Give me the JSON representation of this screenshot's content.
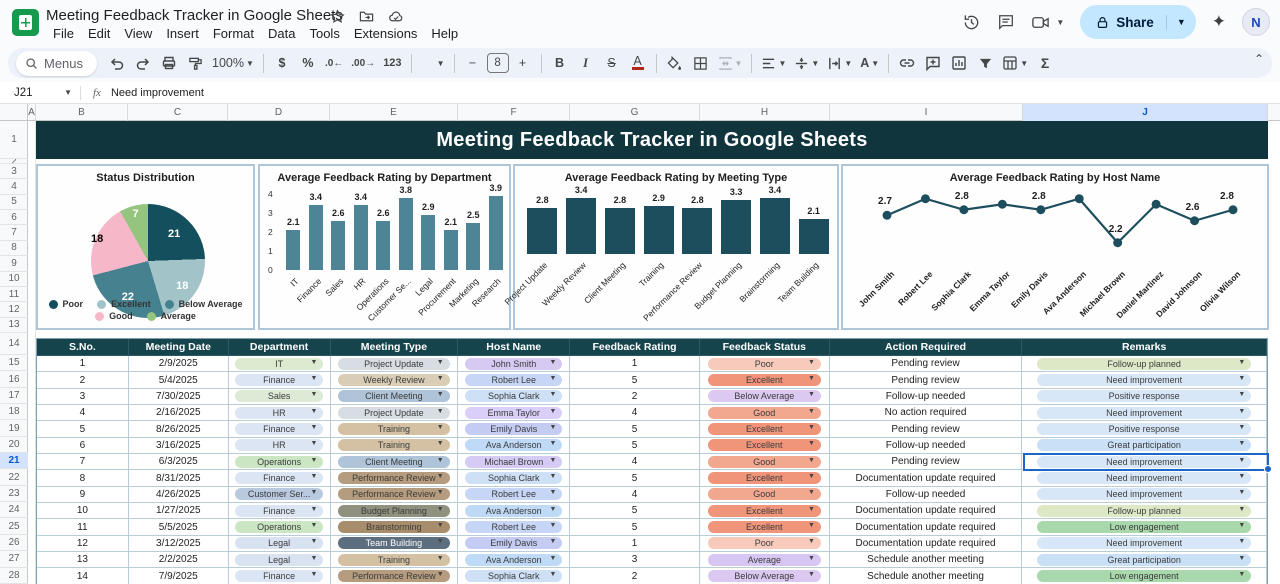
{
  "titlebar": {
    "title": "Meeting Feedback Tracker in Google Sheets",
    "menus": [
      "File",
      "Edit",
      "View",
      "Insert",
      "Format",
      "Data",
      "Tools",
      "Extensions",
      "Help"
    ],
    "share_label": "Share",
    "avatar_initial": "N"
  },
  "toolbar": {
    "menus_label": "Menus",
    "zoom_value": "100%",
    "currency_label": "$",
    "percent_label": "%",
    "decimal_decrease_label": ".0←",
    "decimal_increase_label": ".00→",
    "number_format_label": "123",
    "font_size_value": "8",
    "bold_label": "B",
    "italic_label": "I",
    "strikethrough_label": "S",
    "text_color_label": "A",
    "rotate_label": "A",
    "functions_label": "Σ"
  },
  "formula_bar": {
    "cell_ref": "J21",
    "fx_label": "fx",
    "value": "Need improvement"
  },
  "sheet": {
    "column_letters": [
      "A",
      "B",
      "C",
      "D",
      "E",
      "F",
      "G",
      "H",
      "I",
      "J"
    ],
    "selected_column": "J",
    "selected_row": 21,
    "visible_rows": 28,
    "banner_title": "Meeting Feedback Tracker in Google Sheets"
  },
  "chart_data": [
    {
      "type": "pie",
      "title": "Status Distribution",
      "labels": [
        "Poor",
        "Excellent",
        "Below Average",
        "Good",
        "Average"
      ],
      "values": [
        21,
        18,
        22,
        18,
        7
      ],
      "colors": [
        "#134f5c",
        "#a2c4c9",
        "#45818e",
        "#f6b8c8",
        "#94c47e"
      ],
      "label_text_colors": [
        "#ffffff",
        "#ffffff",
        "#ffffff",
        "#000000",
        "#ffffff"
      ],
      "legend_rows": [
        [
          "Poor",
          "Excellent",
          "Below Average"
        ],
        [
          "Good",
          "Average"
        ]
      ],
      "legend_position": "bottom"
    },
    {
      "type": "bar",
      "title": "Average Feedback Rating by Department",
      "categories": [
        "IT",
        "Finance",
        "Sales",
        "HR",
        "Operations",
        "Customer Se...",
        "Legal",
        "Procurement",
        "Marketing",
        "Research"
      ],
      "values": [
        2.1,
        3.4,
        2.6,
        3.4,
        2.6,
        3.8,
        2.9,
        2.1,
        2.5,
        3.9
      ],
      "ylim": [
        0,
        4
      ],
      "yticks": [
        0,
        1,
        2,
        3,
        4
      ],
      "bar_color": "#4d8496",
      "grid": false
    },
    {
      "type": "bar",
      "title": "Average Feedback Rating by Meeting Type",
      "categories": [
        "Project Update",
        "Weekly Review",
        "Client Meeting",
        "Training",
        "Performance Review",
        "Budget Planning",
        "Brainstorming",
        "Team Building"
      ],
      "values": [
        2.8,
        3.4,
        2.8,
        2.9,
        2.8,
        3.3,
        3.4,
        2.1
      ],
      "ylim": [
        0,
        4
      ],
      "bar_color": "#1c4e5e",
      "grid": false
    },
    {
      "type": "line",
      "title": "Average Feedback Rating by Host Name",
      "categories": [
        "John Smith",
        "Robert Lee",
        "Sophia Clark",
        "Emma Taylor",
        "Emily Davis",
        "Ava Anderson",
        "Michael Brown",
        "Daniel Martinez",
        "David Johnson",
        "Olivia Wilson"
      ],
      "values": [
        2.7,
        3.0,
        2.8,
        2.9,
        2.8,
        3.0,
        2.2,
        2.9,
        2.6,
        2.8
      ],
      "labeled_points": [
        0,
        2,
        4,
        6,
        8,
        9
      ],
      "ylim": [
        2.0,
        3.2
      ],
      "line_color": "#1c4e5e",
      "grid": false
    }
  ],
  "table": {
    "headers": [
      "S.No.",
      "Meeting Date",
      "Department",
      "Meeting Type",
      "Host Name",
      "Feedback Rating",
      "Feedback Status",
      "Action Required",
      "Remarks"
    ],
    "rows": [
      {
        "sno": "1",
        "date": "2/9/2025",
        "department": "IT",
        "meeting_type": "Project Update",
        "host": "John Smith",
        "rating": "1",
        "status": "Poor",
        "action": "Pending review",
        "remarks": "Follow-up planned"
      },
      {
        "sno": "2",
        "date": "5/4/2025",
        "department": "Finance",
        "meeting_type": "Weekly Review",
        "host": "Robert Lee",
        "rating": "5",
        "status": "Excellent",
        "action": "Pending review",
        "remarks": "Need improvement"
      },
      {
        "sno": "3",
        "date": "7/30/2025",
        "department": "Sales",
        "meeting_type": "Client Meeting",
        "host": "Sophia Clark",
        "rating": "2",
        "status": "Below Average",
        "action": "Follow-up needed",
        "remarks": "Positive response"
      },
      {
        "sno": "4",
        "date": "2/16/2025",
        "department": "HR",
        "meeting_type": "Project Update",
        "host": "Emma Taylor",
        "rating": "4",
        "status": "Good",
        "action": "No action required",
        "remarks": "Need improvement"
      },
      {
        "sno": "5",
        "date": "8/26/2025",
        "department": "Finance",
        "meeting_type": "Training",
        "host": "Emily Davis",
        "rating": "5",
        "status": "Excellent",
        "action": "Pending review",
        "remarks": "Positive response"
      },
      {
        "sno": "6",
        "date": "3/16/2025",
        "department": "HR",
        "meeting_type": "Training",
        "host": "Ava Anderson",
        "rating": "5",
        "status": "Excellent",
        "action": "Follow-up needed",
        "remarks": "Great participation"
      },
      {
        "sno": "7",
        "date": "6/3/2025",
        "department": "Operations",
        "meeting_type": "Client Meeting",
        "host": "Michael Brown",
        "rating": "4",
        "status": "Good",
        "action": "Pending review",
        "remarks": "Need improvement",
        "selected": true
      },
      {
        "sno": "8",
        "date": "8/31/2025",
        "department": "Finance",
        "meeting_type": "Performance Review",
        "host": "Sophia Clark",
        "rating": "5",
        "status": "Excellent",
        "action": "Documentation update required",
        "remarks": "Need improvement"
      },
      {
        "sno": "9",
        "date": "4/26/2025",
        "department": "Customer Ser...",
        "meeting_type": "Performance Review",
        "host": "Robert Lee",
        "rating": "4",
        "status": "Good",
        "action": "Follow-up needed",
        "remarks": "Need improvement"
      },
      {
        "sno": "10",
        "date": "1/27/2025",
        "department": "Finance",
        "meeting_type": "Budget Planning",
        "host": "Ava Anderson",
        "rating": "5",
        "status": "Excellent",
        "action": "Documentation update required",
        "remarks": "Follow-up planned"
      },
      {
        "sno": "11",
        "date": "5/5/2025",
        "department": "Operations",
        "meeting_type": "Brainstorming",
        "host": "Robert Lee",
        "rating": "5",
        "status": "Excellent",
        "action": "Documentation update required",
        "remarks": "Low engagement"
      },
      {
        "sno": "12",
        "date": "3/12/2025",
        "department": "Legal",
        "meeting_type": "Team Building",
        "host": "Emily Davis",
        "rating": "1",
        "status": "Poor",
        "action": "Documentation update required",
        "remarks": "Need improvement"
      },
      {
        "sno": "13",
        "date": "2/2/2025",
        "department": "Legal",
        "meeting_type": "Training",
        "host": "Ava Anderson",
        "rating": "3",
        "status": "Average",
        "action": "Schedule another meeting",
        "remarks": "Great participation"
      },
      {
        "sno": "14",
        "date": "7/9/2025",
        "department": "Finance",
        "meeting_type": "Performance Review",
        "host": "Sophia Clark",
        "rating": "2",
        "status": "Below Average",
        "action": "Schedule another meeting",
        "remarks": "Low engagement"
      }
    ]
  },
  "pill_colors": {
    "department": {
      "IT": {
        "bg": "#dcead0"
      },
      "Finance": {
        "bg": "#dbe5f3"
      },
      "Sales": {
        "bg": "#dcead6"
      },
      "HR": {
        "bg": "#dbe5f3"
      },
      "Operations": {
        "bg": "#cbe6c3"
      },
      "Customer Ser...": {
        "bg": "#b9c9e0"
      },
      "Legal": {
        "bg": "#d9e2f1"
      }
    },
    "meeting_type": {
      "Project Update": {
        "bg": "#d8dde3"
      },
      "Weekly Review": {
        "bg": "#d9cdb6"
      },
      "Client Meeting": {
        "bg": "#afc4d8"
      },
      "Training": {
        "bg": "#d4c1a4"
      },
      "Performance Review": {
        "bg": "#b59c7e"
      },
      "Budget Planning": {
        "bg": "#91917f"
      },
      "Brainstorming": {
        "bg": "#a78d6b"
      },
      "Team Building": {
        "bg": "#5d6e7f",
        "fg": "#ffffff"
      }
    },
    "host": {
      "John Smith": {
        "bg": "#d6caf3"
      },
      "Robert Lee": {
        "bg": "#c7d6f6"
      },
      "Sophia Clark": {
        "bg": "#cde0f6"
      },
      "Emma Taylor": {
        "bg": "#d9cff8"
      },
      "Emily Davis": {
        "bg": "#c5ccf4"
      },
      "Ava Anderson": {
        "bg": "#bfdaf7"
      },
      "Michael Brown": {
        "bg": "#d5cbf5"
      }
    },
    "status": {
      "Poor": {
        "bg": "#f7cabc"
      },
      "Excellent": {
        "bg": "#f0947a"
      },
      "Good": {
        "bg": "#f2a78f"
      },
      "Below Average": {
        "bg": "#dcc9f2"
      },
      "Average": {
        "bg": "#d7c6f4"
      }
    },
    "remarks": {
      "Follow-up planned": {
        "bg": "#dde8c6"
      },
      "Need improvement": {
        "bg": "#d8e7f7"
      },
      "Positive response": {
        "bg": "#d8e7f7"
      },
      "Great participation": {
        "bg": "#c9e0f7"
      },
      "Low engagement": {
        "bg": "#a8d8ab"
      }
    }
  },
  "theme": {
    "banner_bg": "#11353d",
    "table_header_bg": "#16444d",
    "accent_blue": "#1b66c9",
    "selection_bg": "#d3e3fd"
  }
}
